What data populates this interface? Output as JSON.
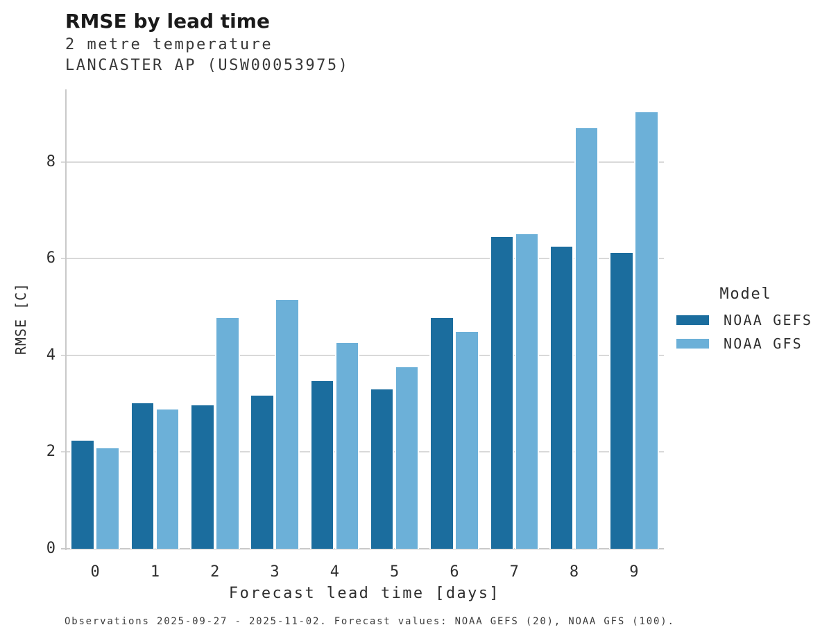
{
  "header": {
    "title": "RMSE by lead time",
    "subtitle1": "2 metre temperature",
    "subtitle2": "LANCASTER AP (USW00053975)"
  },
  "chart_data": {
    "type": "bar",
    "title": "RMSE by lead time",
    "subtitle": "2 metre temperature — LANCASTER AP (USW00053975)",
    "categories": [
      "0",
      "1",
      "2",
      "3",
      "4",
      "5",
      "6",
      "7",
      "8",
      "9"
    ],
    "series": [
      {
        "name": "NOAA GEFS",
        "color": "#1b6d9e",
        "values": [
          2.24,
          3.01,
          2.96,
          3.16,
          3.47,
          3.29,
          4.77,
          6.45,
          6.25,
          6.12
        ]
      },
      {
        "name": "NOAA GFS",
        "color": "#6cb0d8",
        "values": [
          2.08,
          2.88,
          4.77,
          5.14,
          4.26,
          3.76,
          4.48,
          6.5,
          8.7,
          9.02
        ]
      }
    ],
    "xlabel": "Forecast lead time [days]",
    "ylabel": "RMSE [C]",
    "yticks": [
      0,
      2,
      4,
      6,
      8
    ],
    "ylim": [
      0,
      9.5
    ],
    "grid": "horizontal",
    "grid_color": "#d9d9d9",
    "axis_color": "#c9c9c9",
    "legend_title": "Model",
    "legend_position": "right"
  },
  "caption": "Observations 2025-09-27 - 2025-11-02. Forecast values: NOAA GEFS (20), NOAA GFS (100)."
}
